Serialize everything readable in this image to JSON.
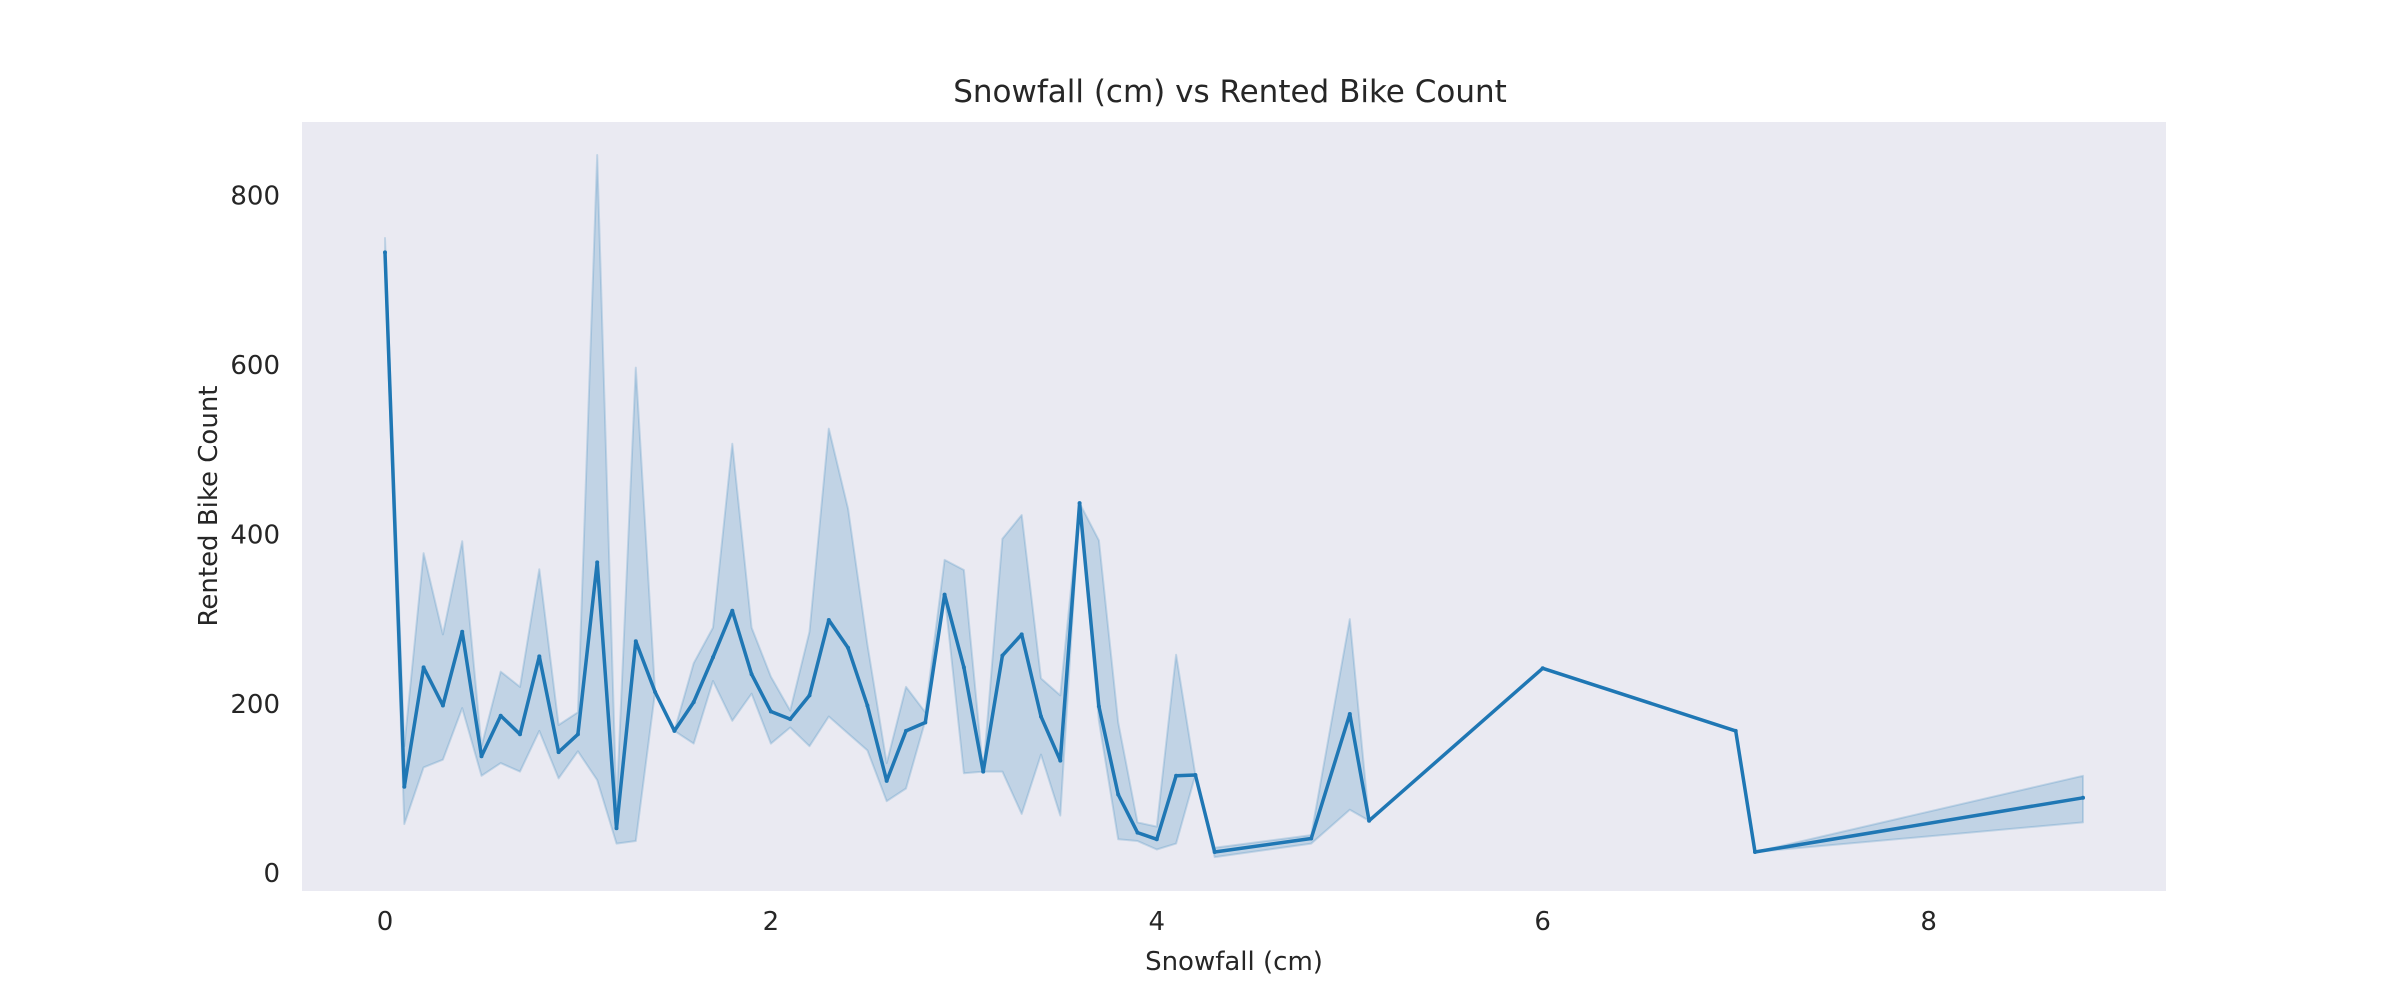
{
  "chart_data": {
    "type": "line",
    "title": "Snowfall (cm) vs Rented Bike Count",
    "xlabel": "Snowfall (cm)",
    "ylabel": "Rented Bike Count",
    "xlim": [
      -0.43,
      9.23
    ],
    "ylim": [
      -21,
      887
    ],
    "x_ticks": [
      0,
      2,
      4,
      6,
      8
    ],
    "y_ticks": [
      0,
      200,
      400,
      600,
      800
    ],
    "grid": false,
    "colors": {
      "line": "#1f77b4",
      "band": "#1f77b4",
      "plot_background": "#eaeaf2",
      "page_background": "#ffffff"
    },
    "series": [
      {
        "x": [
          0,
          0.1,
          0.2,
          0.3,
          0.4,
          0.5,
          0.6,
          0.7,
          0.8,
          0.9,
          1.0,
          1.1,
          1.2,
          1.3,
          1.4,
          1.5,
          1.6,
          1.7,
          1.8,
          1.9,
          2.0,
          2.1,
          2.2,
          2.3,
          2.4,
          2.5,
          2.6,
          2.7,
          2.8,
          2.9,
          3.0,
          3.1,
          3.2,
          3.3,
          3.4,
          3.5,
          3.6,
          3.7,
          3.8,
          3.9,
          4.0,
          4.1,
          4.2,
          4.3,
          4.8,
          5.0,
          5.1,
          6.0,
          7.0,
          7.1,
          8.8
        ],
        "y": [
          733,
          102,
          243,
          198,
          285,
          138,
          186,
          164,
          256,
          143,
          164,
          367,
          53,
          274,
          214,
          168,
          202,
          255,
          310,
          235,
          191,
          182,
          210,
          299,
          266,
          198,
          109,
          168,
          178,
          329,
          243,
          120,
          257,
          282,
          185,
          133,
          437,
          197,
          93,
          48,
          40,
          115,
          116,
          25,
          41,
          188,
          62,
          242,
          168,
          25,
          89
        ],
        "ci_low": [
          717,
          58,
          125,
          134,
          195,
          115,
          130,
          120,
          168,
          112,
          144,
          110,
          35,
          38,
          214,
          168,
          153,
          227,
          180,
          212,
          153,
          172,
          150,
          185,
          165,
          145,
          85,
          100,
          180,
          329,
          118,
          120,
          120,
          70,
          140,
          68,
          437,
          180,
          40,
          38,
          28,
          35,
          116,
          19,
          35,
          75,
          62,
          242,
          168,
          25,
          60
        ],
        "ci_high": [
          750,
          150,
          378,
          282,
          392,
          150,
          238,
          220,
          359,
          175,
          190,
          848,
          80,
          597,
          214,
          168,
          248,
          290,
          507,
          290,
          232,
          192,
          285,
          525,
          430,
          270,
          130,
          220,
          190,
          370,
          358,
          120,
          395,
          423,
          230,
          210,
          437,
          393,
          178,
          60,
          55,
          258,
          116,
          30,
          45,
          300,
          62,
          242,
          168,
          25,
          115
        ]
      }
    ]
  }
}
